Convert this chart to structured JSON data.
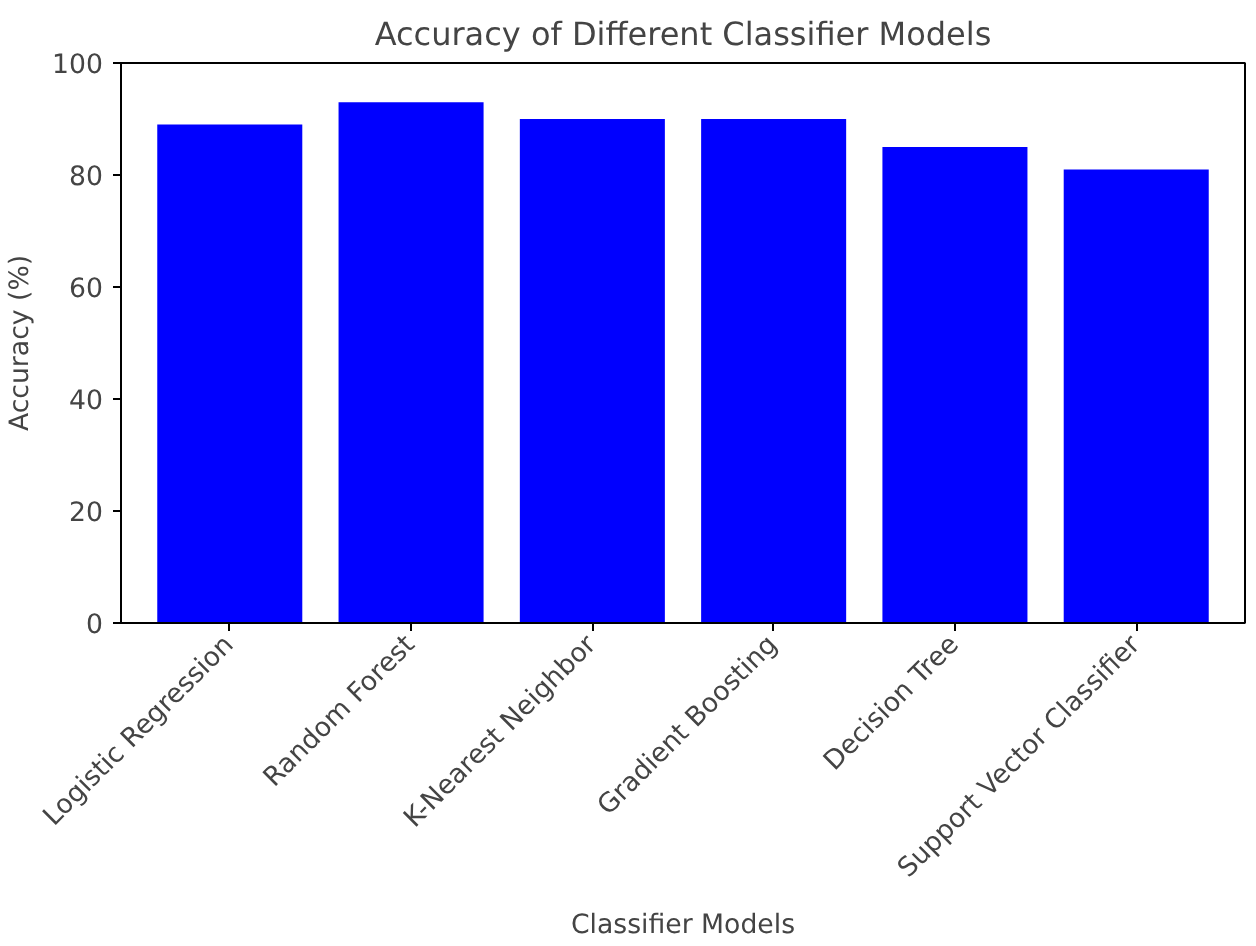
{
  "chart_data": {
    "type": "bar",
    "title": "Accuracy of Different Classifier Models",
    "xlabel": "Classifier Models",
    "ylabel": "Accuracy (%)",
    "categories": [
      "Logistic Regression",
      "Random Forest",
      "K-Nearest Neighbor",
      "Gradient Boosting",
      "Decision Tree",
      "Support Vector Classifier"
    ],
    "values": [
      89,
      93,
      90,
      90,
      85,
      81
    ],
    "color": "#0000ff",
    "ylim": [
      0,
      100
    ],
    "yticks": [
      0,
      20,
      40,
      60,
      80,
      100
    ],
    "grid": false
  }
}
